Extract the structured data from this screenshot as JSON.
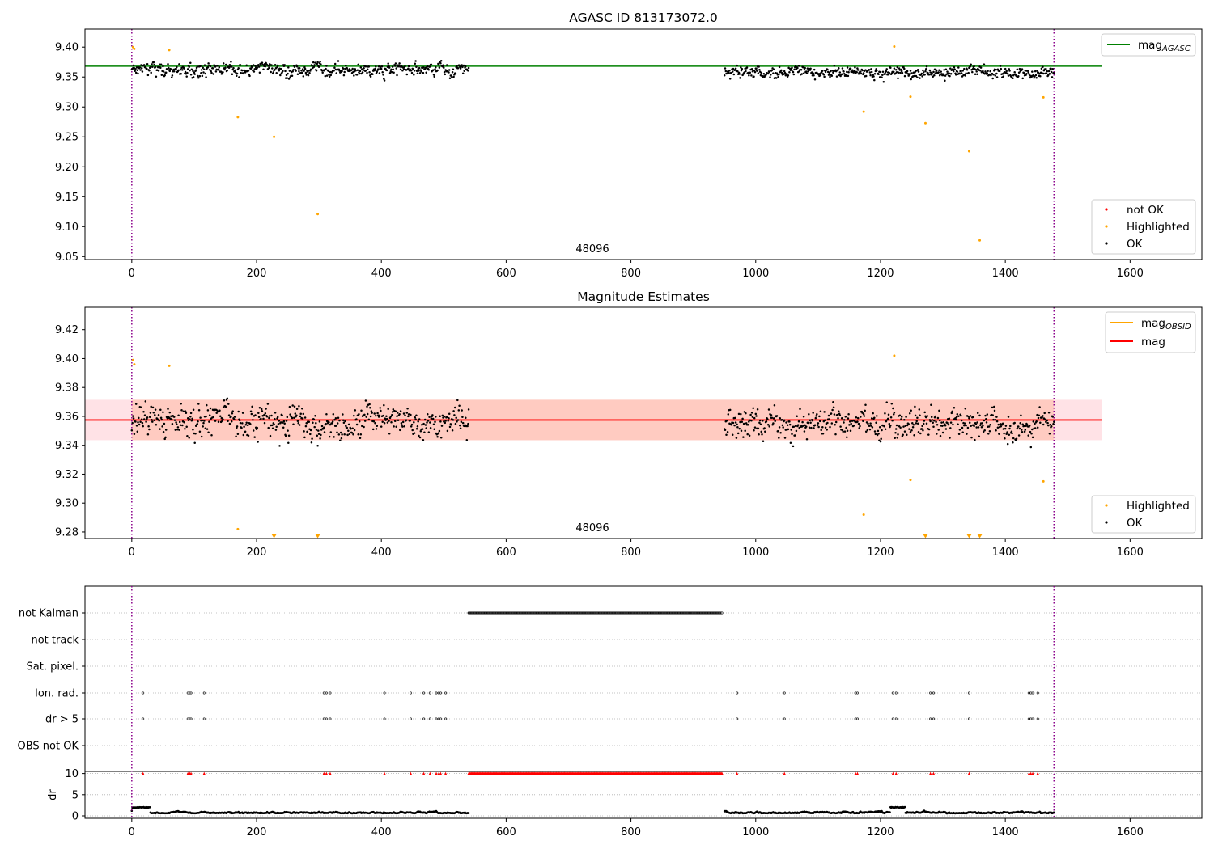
{
  "chart_data": [
    {
      "type": "scatter",
      "title": "AGASC ID 813173072.0",
      "xlabel": "",
      "ylabel": "",
      "xlim": [
        -75,
        1715
      ],
      "ylim": [
        9.045,
        9.43
      ],
      "x_ticks": [
        0,
        200,
        400,
        600,
        800,
        1000,
        1200,
        1400,
        1600
      ],
      "y_ticks": [
        9.05,
        9.1,
        9.15,
        9.2,
        9.25,
        9.3,
        9.35,
        9.4
      ],
      "grid": false,
      "legend_placement": "upper-right and lower-right",
      "legends": [
        {
          "placement": "top-right",
          "entries": [
            {
              "label": "mag",
              "sub": "AGASC",
              "kind": "line",
              "color": "#008000"
            }
          ]
        },
        {
          "placement": "bottom-right",
          "entries": [
            {
              "label": "not OK",
              "kind": "marker",
              "color": "#ff0000"
            },
            {
              "label": "Highlighted",
              "kind": "marker",
              "color": "#ffa500"
            },
            {
              "label": "OK",
              "kind": "marker",
              "color": "#000000"
            }
          ]
        }
      ],
      "hlines": [
        {
          "y": 9.368,
          "x": [
            -75,
            1555
          ],
          "color": "#008000"
        }
      ],
      "vlines": [
        {
          "x": 0,
          "color": "#8b008b"
        },
        {
          "x": 1478,
          "color": "#8b008b"
        }
      ],
      "annotation": {
        "text": "48096",
        "x": 740,
        "y": 9.052
      },
      "ok_segments": [
        {
          "x": [
            0,
            540
          ],
          "mean": 9.362,
          "spread": 0.013
        },
        {
          "x": [
            950,
            1478
          ],
          "mean": 9.358,
          "spread": 0.012
        }
      ],
      "highlighted_points": [
        {
          "x": 2,
          "y": 9.4
        },
        {
          "x": 4,
          "y": 9.397
        },
        {
          "x": 60,
          "y": 9.395
        },
        {
          "x": 170,
          "y": 9.283
        },
        {
          "x": 228,
          "y": 9.25
        },
        {
          "x": 298,
          "y": 9.121
        },
        {
          "x": 1173,
          "y": 9.292
        },
        {
          "x": 1222,
          "y": 9.401
        },
        {
          "x": 1248,
          "y": 9.317
        },
        {
          "x": 1272,
          "y": 9.273
        },
        {
          "x": 1342,
          "y": 9.226
        },
        {
          "x": 1359,
          "y": 9.077
        },
        {
          "x": 1461,
          "y": 9.316
        }
      ]
    },
    {
      "type": "scatter",
      "title": "Magnitude Estimates",
      "xlabel": "",
      "ylabel": "",
      "xlim": [
        -75,
        1715
      ],
      "ylim": [
        9.2755,
        9.4355
      ],
      "x_ticks": [
        0,
        200,
        400,
        600,
        800,
        1000,
        1200,
        1400,
        1600
      ],
      "y_ticks": [
        9.28,
        9.3,
        9.32,
        9.34,
        9.36,
        9.38,
        9.4,
        9.42
      ],
      "grid": false,
      "legends": [
        {
          "placement": "top-right",
          "entries": [
            {
              "label": "mag",
              "sub": "OBSID",
              "kind": "line",
              "color": "#ffa500"
            },
            {
              "label": "mag",
              "kind": "line",
              "color": "#ff0000"
            }
          ]
        },
        {
          "placement": "bottom-right",
          "entries": [
            {
              "label": "Highlighted",
              "kind": "marker",
              "color": "#ffa500"
            },
            {
              "label": "OK",
              "kind": "marker",
              "color": "#000000"
            }
          ]
        }
      ],
      "mag_line": {
        "y": 9.3575,
        "x": [
          -75,
          1555
        ],
        "color": "#ff0000"
      },
      "mag_band": {
        "y": [
          9.3435,
          9.3715
        ],
        "x": [
          -75,
          1555
        ],
        "color": "#ffb6c1"
      },
      "obsid_band": {
        "y": [
          9.3435,
          9.3715
        ],
        "x": [
          0,
          1478
        ],
        "color": "#ffa07a"
      },
      "vlines": [
        {
          "x": 0,
          "color": "#8b008b"
        },
        {
          "x": 1478,
          "color": "#8b008b"
        }
      ],
      "annotation": {
        "text": "48096",
        "x": 740,
        "y": 9.283
      },
      "ok_segments": [
        {
          "x": [
            0,
            540
          ],
          "mean": 9.357,
          "spread": 0.013
        },
        {
          "x": [
            950,
            1478
          ],
          "mean": 9.355,
          "spread": 0.012
        }
      ],
      "highlighted_points": [
        {
          "x": 2,
          "y": 9.399
        },
        {
          "x": 4,
          "y": 9.396
        },
        {
          "x": 60,
          "y": 9.395
        },
        {
          "x": 170,
          "y": 9.282
        },
        {
          "x": 1173,
          "y": 9.292
        },
        {
          "x": 1222,
          "y": 9.402
        },
        {
          "x": 1248,
          "y": 9.316
        },
        {
          "x": 1461,
          "y": 9.315
        }
      ],
      "clipped_markers": [
        228,
        298,
        1272,
        1342,
        1359
      ]
    },
    {
      "type": "scatter",
      "title": "",
      "xlim": [
        -75,
        1715
      ],
      "x_ticks": [
        0,
        200,
        400,
        600,
        800,
        1000,
        1200,
        1400,
        1600
      ],
      "flag_rows": [
        "not Kalman",
        "not track",
        "Sat. pixel.",
        "Ion. rad.",
        "dr > 5",
        "OBS not OK"
      ],
      "flag_points": {
        "not Kalman": {
          "ranges": [
            [
              540,
              946
            ]
          ]
        },
        "Ion. rad.": {
          "x": [
            18,
            90,
            93,
            95,
            116,
            308,
            312,
            318,
            405,
            447,
            468,
            478,
            488,
            492,
            495,
            503,
            970,
            1046,
            1160,
            1163,
            1220,
            1225,
            1280,
            1285,
            1342,
            1438,
            1441,
            1444,
            1452
          ]
        },
        "dr > 5": {
          "x": [
            18,
            90,
            93,
            95,
            116,
            308,
            312,
            318,
            405,
            447,
            468,
            478,
            488,
            492,
            495,
            503,
            970,
            1046,
            1160,
            1163,
            1220,
            1225,
            1280,
            1285,
            1342,
            1438,
            1441,
            1444,
            1452
          ]
        }
      },
      "vlines": [
        {
          "x": 0,
          "color": "#8b008b"
        },
        {
          "x": 1478,
          "color": "#8b008b"
        }
      ],
      "dr_panel": {
        "ylabel": "dr",
        "ylim": [
          0,
          10.5
        ],
        "y_ticks": [
          0,
          5,
          10
        ],
        "clip_value": 10,
        "clipped_color": "#ff0000",
        "segments": [
          {
            "x": [
              0,
              540
            ]
          },
          {
            "x": [
              950,
              1478
            ]
          }
        ]
      }
    }
  ]
}
